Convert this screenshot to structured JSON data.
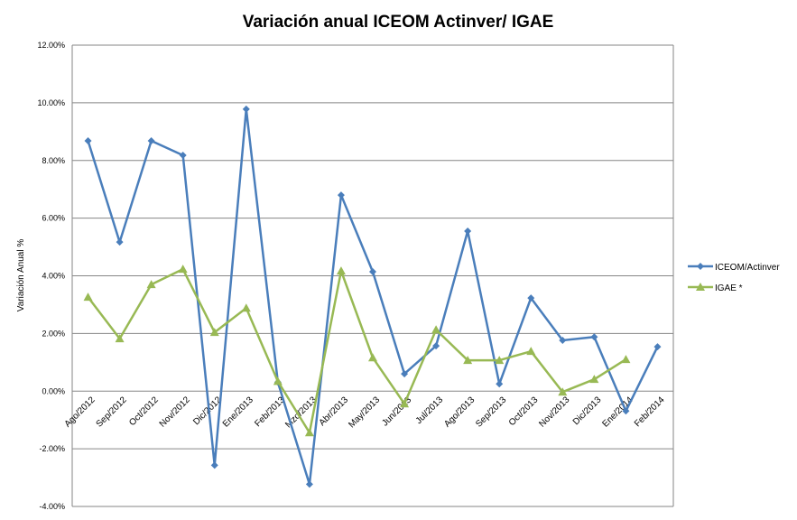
{
  "chart_data": {
    "type": "line",
    "title": "Variación anual ICEOM Actinver/ IGAE",
    "xlabel": "",
    "ylabel": "Variación Anual %",
    "ylim": [
      -4,
      12
    ],
    "yticks": [
      "-4.00%",
      "-2.00%",
      "0.00%",
      "2.00%",
      "4.00%",
      "6.00%",
      "8.00%",
      "10.00%",
      "12.00%"
    ],
    "grid": true,
    "legend": "right",
    "categories": [
      "Ago/2012",
      "Sep/2012",
      "Oct/2012",
      "Nov/2012",
      "Dic/2012",
      "Ene/2013",
      "Feb/2013",
      "Mzo/2013",
      "Abr/2013",
      "May/2013",
      "Jun/2013",
      "Jul/2013",
      "Ago/2013",
      "Sep/2013",
      "Oct/2013",
      "Nov/2013",
      "Dic/2013",
      "Ene/2014",
      "Feb/2014"
    ],
    "series": [
      {
        "name": "ICEOM/Actinver",
        "color": "#4a7ebb",
        "marker": "diamond",
        "values": [
          8.68,
          5.17,
          8.68,
          8.18,
          -2.57,
          9.78,
          0.31,
          -3.23,
          6.8,
          4.14,
          0.6,
          1.57,
          5.55,
          0.25,
          3.23,
          1.76,
          1.88,
          -0.69,
          1.54
        ]
      },
      {
        "name": "IGAE *",
        "color": "#98b954",
        "marker": "triangle",
        "values": [
          3.26,
          1.82,
          3.7,
          4.23,
          2.04,
          2.88,
          0.34,
          -1.44,
          4.17,
          1.16,
          -0.44,
          2.13,
          1.07,
          1.07,
          1.38,
          -0.03,
          0.41,
          1.1,
          null
        ]
      }
    ]
  }
}
